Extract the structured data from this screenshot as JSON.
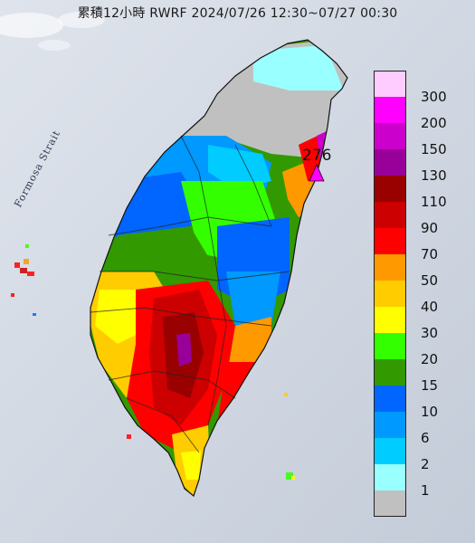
{
  "title": "累積12小時 RWRF 2024/07/26 12:30~07/27 00:30",
  "strait_label": "Formosa Strait",
  "max_value": "276",
  "legend": {
    "levels": [
      {
        "label": "300",
        "color": "#ffccff"
      },
      {
        "label": "200",
        "color": "#ff00ff"
      },
      {
        "label": "150",
        "color": "#cc00cc"
      },
      {
        "label": "130",
        "color": "#990099"
      },
      {
        "label": "110",
        "color": "#990000"
      },
      {
        "label": "90",
        "color": "#cc0000"
      },
      {
        "label": "70",
        "color": "#ff0000"
      },
      {
        "label": "50",
        "color": "#ff9900"
      },
      {
        "label": "40",
        "color": "#ffcc00"
      },
      {
        "label": "30",
        "color": "#ffff00"
      },
      {
        "label": "20",
        "color": "#33ff00"
      },
      {
        "label": "15",
        "color": "#339900"
      },
      {
        "label": "10",
        "color": "#0066ff"
      },
      {
        "label": "6",
        "color": "#0099ff"
      },
      {
        "label": "2",
        "color": "#00ccff"
      },
      {
        "label": "1",
        "color": "#99ffff"
      },
      {
        "label": "",
        "color": "#c0c0c0"
      }
    ]
  }
}
